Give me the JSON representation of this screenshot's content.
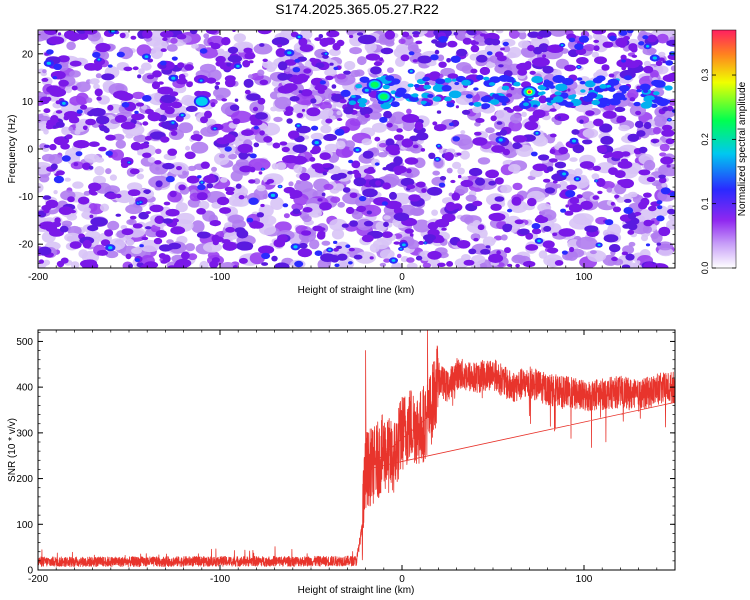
{
  "title": "S174.2025.365.05.27.R22",
  "chart_data": [
    {
      "type": "heatmap",
      "title": "",
      "xlabel": "Height of straight line (km)",
      "ylabel": "Frequency (Hz)",
      "xlim": [
        -200,
        150
      ],
      "ylim": [
        -25,
        25
      ],
      "x_ticks": [
        -200,
        -100,
        0,
        100
      ],
      "y_ticks": [
        -20,
        -10,
        0,
        10,
        20
      ],
      "colorbar": {
        "label": "Normalized spectral amplitude",
        "range": [
          0.0,
          0.37
        ],
        "ticks": [
          0.0,
          0.1,
          0.2,
          0.3
        ],
        "colors": [
          "#ffffff",
          "#a03cf0",
          "#2020ff",
          "#00e0e0",
          "#00ff60",
          "#ffff00",
          "#ff2060"
        ]
      },
      "features": [
        {
          "x": -15,
          "y": 13.5,
          "amplitude": 0.17
        },
        {
          "x": -10,
          "y": 11,
          "amplitude": 0.16
        },
        {
          "x": 70,
          "y": 12,
          "amplitude": 0.35
        },
        {
          "x": -110,
          "y": 10,
          "amplitude": 0.1
        }
      ]
    },
    {
      "type": "line",
      "title": "",
      "xlabel": "Height of straight line (km)",
      "ylabel": "SNR (10 * v/v)",
      "xlim": [
        -200,
        150
      ],
      "ylim": [
        0,
        525
      ],
      "x_ticks": [
        -200,
        -100,
        0,
        100
      ],
      "y_ticks": [
        0,
        100,
        200,
        300,
        400,
        500
      ],
      "color": "#e8342c",
      "series": [
        {
          "name": "SNR",
          "x": [
            -200,
            -150,
            -100,
            -50,
            -25,
            -22,
            -20,
            -15,
            -10,
            -5,
            0,
            5,
            10,
            15,
            20,
            25,
            30,
            40,
            50,
            60,
            70,
            80,
            90,
            100,
            110,
            120,
            130,
            140,
            150
          ],
          "values": [
            18,
            18,
            19,
            19,
            20,
            90,
            220,
            230,
            260,
            240,
            300,
            320,
            310,
            340,
            420,
            400,
            430,
            420,
            430,
            400,
            410,
            395,
            390,
            380,
            385,
            390,
            380,
            395,
            400
          ]
        }
      ],
      "annotations": [
        {
          "x": -20,
          "y": 480,
          "text": ""
        },
        {
          "x": 14,
          "y": 525,
          "text": ""
        }
      ]
    }
  ]
}
